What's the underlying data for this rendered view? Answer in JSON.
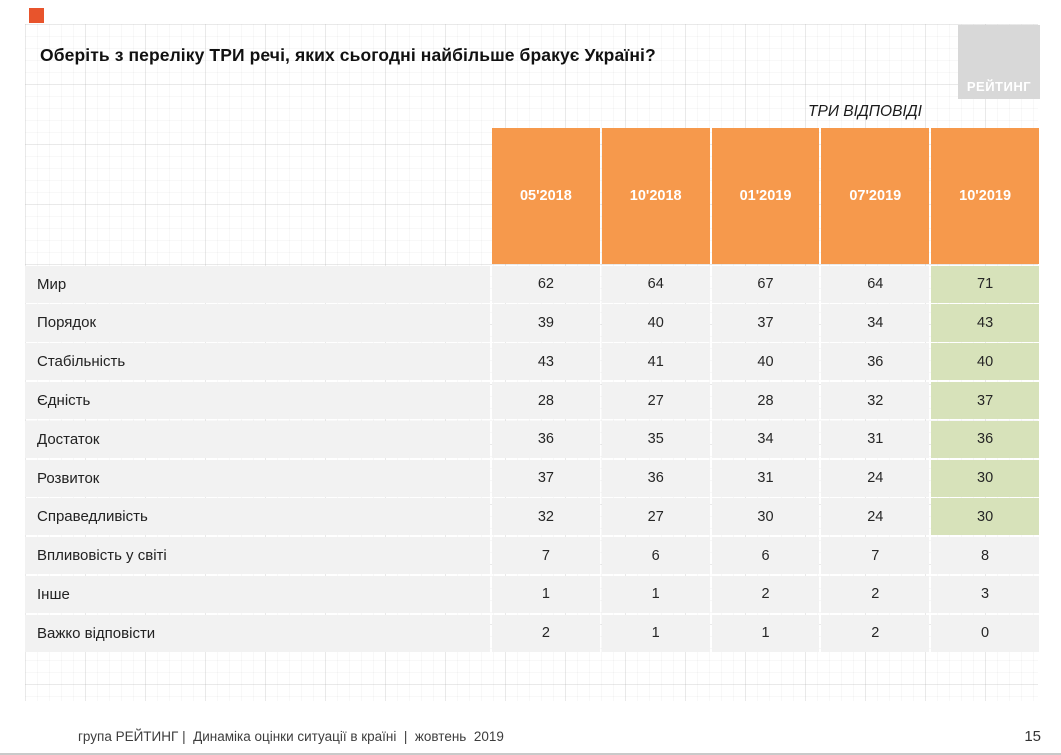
{
  "slide": {
    "title": "Оберіть з переліку ТРИ речі, яких сьогодні найбільше бракує Україні?",
    "subtitle": "ТРИ ВІДПОВІДІ",
    "logo_text": "РЕЙТИНГ",
    "footer": "група РЕЙТИНГ |  Динаміка оцінки ситуації в країні  |  жовтень  2019",
    "page_number": "15"
  },
  "colors": {
    "header_orange": "#F6994C",
    "highlight_green": "#D7E2BA",
    "row_gray": "#F2F2F2",
    "logo_gray": "#D8D8D8",
    "accent_square": "#E8542C"
  },
  "chart_data": {
    "type": "table",
    "title": "Оберіть з переліку ТРИ речі, яких сьогодні найбільше бракує Україні?",
    "subtitle": "ТРИ ВІДПОВІДІ",
    "columns": [
      "05'2018",
      "10'2018",
      "01'2019",
      "07'2019",
      "10'2019"
    ],
    "highlighted_column": "10'2019",
    "rows": [
      {
        "label": "Мир",
        "values": [
          62,
          64,
          67,
          64,
          71
        ],
        "last_highlighted": true
      },
      {
        "label": "Порядок",
        "values": [
          39,
          40,
          37,
          34,
          43
        ],
        "last_highlighted": true
      },
      {
        "label": "Стабільність",
        "values": [
          43,
          41,
          40,
          36,
          40
        ],
        "last_highlighted": true
      },
      {
        "label": "Єдність",
        "values": [
          28,
          27,
          28,
          32,
          37
        ],
        "last_highlighted": true
      },
      {
        "label": "Достаток",
        "values": [
          36,
          35,
          34,
          31,
          36
        ],
        "last_highlighted": true
      },
      {
        "label": "Розвиток",
        "values": [
          37,
          36,
          31,
          24,
          30
        ],
        "last_highlighted": true
      },
      {
        "label": "Справедливість",
        "values": [
          32,
          27,
          30,
          24,
          30
        ],
        "last_highlighted": true
      },
      {
        "label": "Впливовість у світі",
        "values": [
          7,
          6,
          6,
          7,
          8
        ],
        "last_highlighted": false
      },
      {
        "label": "Інше",
        "values": [
          1,
          1,
          2,
          2,
          3
        ],
        "last_highlighted": false
      },
      {
        "label": "Важко відповісти",
        "values": [
          2,
          1,
          1,
          2,
          0
        ],
        "last_highlighted": false
      }
    ]
  }
}
